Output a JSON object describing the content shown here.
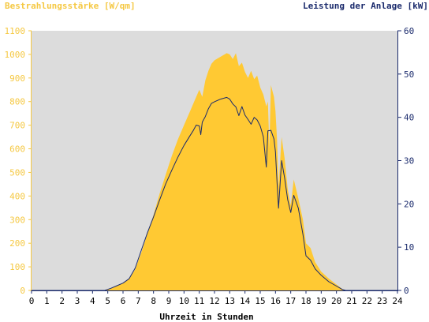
{
  "chart_data": {
    "type": "area",
    "title_left": "Bestrahlungsstärke [W/qm]",
    "title_right": "Leistung der Anlage [kW]",
    "xlabel": "Uhrzeit in Stunden",
    "x_ticks": [
      "0",
      "1",
      "2",
      "3",
      "4",
      "5",
      "6",
      "7",
      "8",
      "9",
      "10",
      "11",
      "12",
      "13",
      "14",
      "15",
      "16",
      "17",
      "18",
      "19",
      "20",
      "21",
      "22",
      "23",
      "24"
    ],
    "y_left_ticks": [
      "0",
      "100",
      "200",
      "300",
      "400",
      "500",
      "600",
      "700",
      "800",
      "900",
      "1000",
      "1100"
    ],
    "y_right_ticks": [
      "0",
      "10",
      "20",
      "30",
      "40",
      "50",
      "60"
    ],
    "xlim": [
      0,
      24
    ],
    "ylim_left": [
      0,
      1100
    ],
    "ylim_right": [
      0,
      60
    ],
    "grid": false,
    "colors": {
      "irradiance": "#ffc933",
      "power": "#1a2a6c",
      "plot_bg": "#dcdcdc",
      "left_axis": "#f5c842",
      "right_axis": "#1a2a6c"
    },
    "series": [
      {
        "name": "Bestrahlungsstärke [W/qm]",
        "axis": "left",
        "style": "filled-area",
        "points": [
          [
            0,
            0
          ],
          [
            4.8,
            0
          ],
          [
            5.2,
            8
          ],
          [
            5.6,
            20
          ],
          [
            6.0,
            32
          ],
          [
            6.4,
            48
          ],
          [
            6.8,
            90
          ],
          [
            7.2,
            160
          ],
          [
            7.6,
            240
          ],
          [
            8.0,
            320
          ],
          [
            8.4,
            410
          ],
          [
            8.8,
            490
          ],
          [
            9.2,
            570
          ],
          [
            9.6,
            640
          ],
          [
            10.0,
            700
          ],
          [
            10.4,
            760
          ],
          [
            10.8,
            820
          ],
          [
            11.0,
            850
          ],
          [
            11.2,
            820
          ],
          [
            11.4,
            890
          ],
          [
            11.6,
            930
          ],
          [
            11.8,
            960
          ],
          [
            12.0,
            975
          ],
          [
            12.4,
            990
          ],
          [
            12.8,
            1005
          ],
          [
            13.0,
            1000
          ],
          [
            13.2,
            980
          ],
          [
            13.4,
            1005
          ],
          [
            13.6,
            950
          ],
          [
            13.8,
            965
          ],
          [
            14.0,
            925
          ],
          [
            14.2,
            900
          ],
          [
            14.4,
            930
          ],
          [
            14.6,
            895
          ],
          [
            14.8,
            910
          ],
          [
            15.0,
            860
          ],
          [
            15.2,
            830
          ],
          [
            15.4,
            780
          ],
          [
            15.5,
            800
          ],
          [
            15.6,
            600
          ],
          [
            15.7,
            870
          ],
          [
            15.9,
            820
          ],
          [
            16.0,
            760
          ],
          [
            16.1,
            640
          ],
          [
            16.2,
            440
          ],
          [
            16.4,
            650
          ],
          [
            16.6,
            560
          ],
          [
            16.8,
            430
          ],
          [
            17.0,
            360
          ],
          [
            17.2,
            470
          ],
          [
            17.5,
            390
          ],
          [
            17.8,
            300
          ],
          [
            18.0,
            200
          ],
          [
            18.3,
            180
          ],
          [
            18.6,
            120
          ],
          [
            19.0,
            80
          ],
          [
            19.5,
            50
          ],
          [
            20.0,
            25
          ],
          [
            20.4,
            5
          ],
          [
            20.6,
            0
          ],
          [
            24,
            0
          ]
        ]
      },
      {
        "name": "Leistung der Anlage [kW]",
        "axis": "right",
        "style": "line",
        "points": [
          [
            0,
            0
          ],
          [
            4.8,
            0
          ],
          [
            5.2,
            0.5
          ],
          [
            5.6,
            1.1
          ],
          [
            6.0,
            1.7
          ],
          [
            6.4,
            2.7
          ],
          [
            6.8,
            5.2
          ],
          [
            7.2,
            9.3
          ],
          [
            7.6,
            13.3
          ],
          [
            8.0,
            17.0
          ],
          [
            8.4,
            20.9
          ],
          [
            8.8,
            24.6
          ],
          [
            9.2,
            27.8
          ],
          [
            9.6,
            30.8
          ],
          [
            10.0,
            33.5
          ],
          [
            10.4,
            35.8
          ],
          [
            10.6,
            36.9
          ],
          [
            10.8,
            38.2
          ],
          [
            11.0,
            38.0
          ],
          [
            11.1,
            36.0
          ],
          [
            11.2,
            38.9
          ],
          [
            11.4,
            40.2
          ],
          [
            11.6,
            42.0
          ],
          [
            11.8,
            43.2
          ],
          [
            12.0,
            43.6
          ],
          [
            12.4,
            44.2
          ],
          [
            12.8,
            44.6
          ],
          [
            13.0,
            44.2
          ],
          [
            13.2,
            43.1
          ],
          [
            13.4,
            42.4
          ],
          [
            13.6,
            40.4
          ],
          [
            13.8,
            42.5
          ],
          [
            14.0,
            40.5
          ],
          [
            14.2,
            39.5
          ],
          [
            14.4,
            38.4
          ],
          [
            14.6,
            40.0
          ],
          [
            14.8,
            39.4
          ],
          [
            15.0,
            38.0
          ],
          [
            15.2,
            35.5
          ],
          [
            15.4,
            28.5
          ],
          [
            15.5,
            36.9
          ],
          [
            15.7,
            37.0
          ],
          [
            15.9,
            35.0
          ],
          [
            16.0,
            32.0
          ],
          [
            16.1,
            25.0
          ],
          [
            16.2,
            19.0
          ],
          [
            16.4,
            30.0
          ],
          [
            16.6,
            26.0
          ],
          [
            16.8,
            21.0
          ],
          [
            17.0,
            18.0
          ],
          [
            17.2,
            22.0
          ],
          [
            17.5,
            19.0
          ],
          [
            17.8,
            13.0
          ],
          [
            18.0,
            8.0
          ],
          [
            18.3,
            7.0
          ],
          [
            18.6,
            5.0
          ],
          [
            19.0,
            3.5
          ],
          [
            19.5,
            2.0
          ],
          [
            20.0,
            1.0
          ],
          [
            20.4,
            0.2
          ],
          [
            20.6,
            0
          ],
          [
            24,
            0
          ]
        ]
      }
    ]
  }
}
